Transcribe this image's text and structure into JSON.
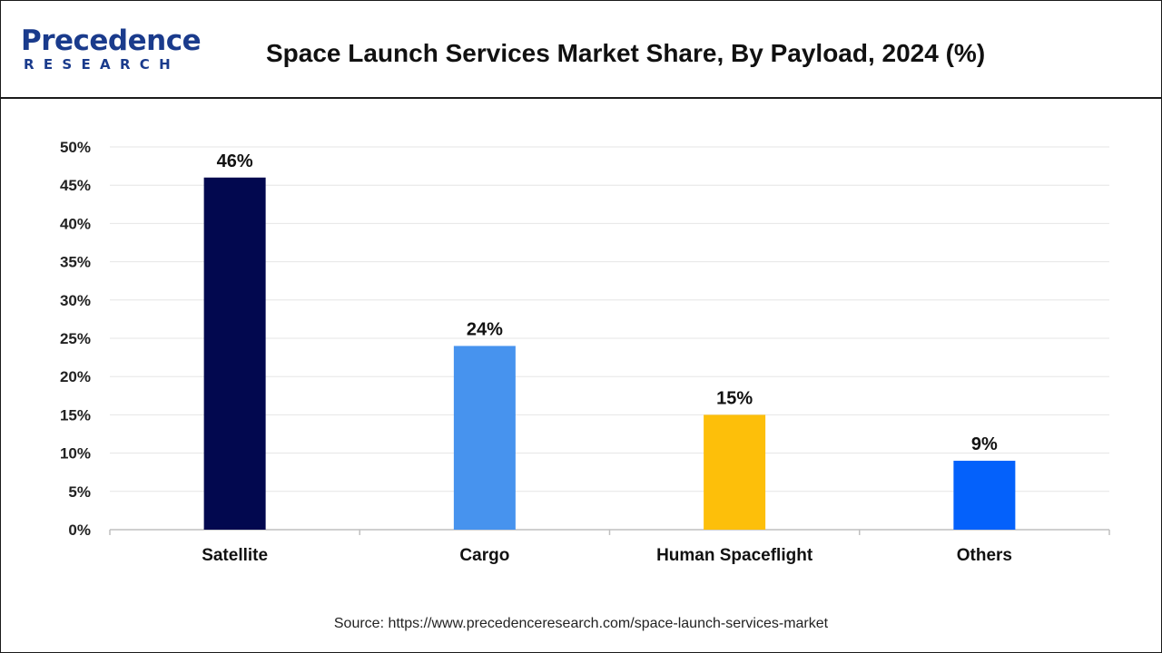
{
  "header": {
    "logo_word": "Precedence",
    "logo_sub": "RESEARCH",
    "title": "Space Launch Services Market Share, By Payload, 2024 (%)"
  },
  "chart_data": {
    "type": "bar",
    "title": "Space Launch Services Market Share, By Payload, 2024 (%)",
    "xlabel": "",
    "ylabel": "",
    "categories": [
      "Satellite",
      "Cargo",
      "Human Spaceflight",
      "Others"
    ],
    "values": [
      46,
      24,
      15,
      9
    ],
    "value_labels": [
      "46%",
      "24%",
      "15%",
      "9%"
    ],
    "colors": [
      "#02084f",
      "#4793ee",
      "#fdbf0a",
      "#0461fb"
    ],
    "ylim": [
      0,
      50
    ],
    "yticks": [
      0,
      5,
      10,
      15,
      20,
      25,
      30,
      35,
      40,
      45,
      50
    ],
    "ytick_labels": [
      "0%",
      "5%",
      "10%",
      "15%",
      "20%",
      "25%",
      "30%",
      "35%",
      "40%",
      "45%",
      "50%"
    ],
    "grid": true,
    "legend": "none"
  },
  "footer": {
    "source": "Source: https://www.precedenceresearch.com/space-launch-services-market"
  }
}
